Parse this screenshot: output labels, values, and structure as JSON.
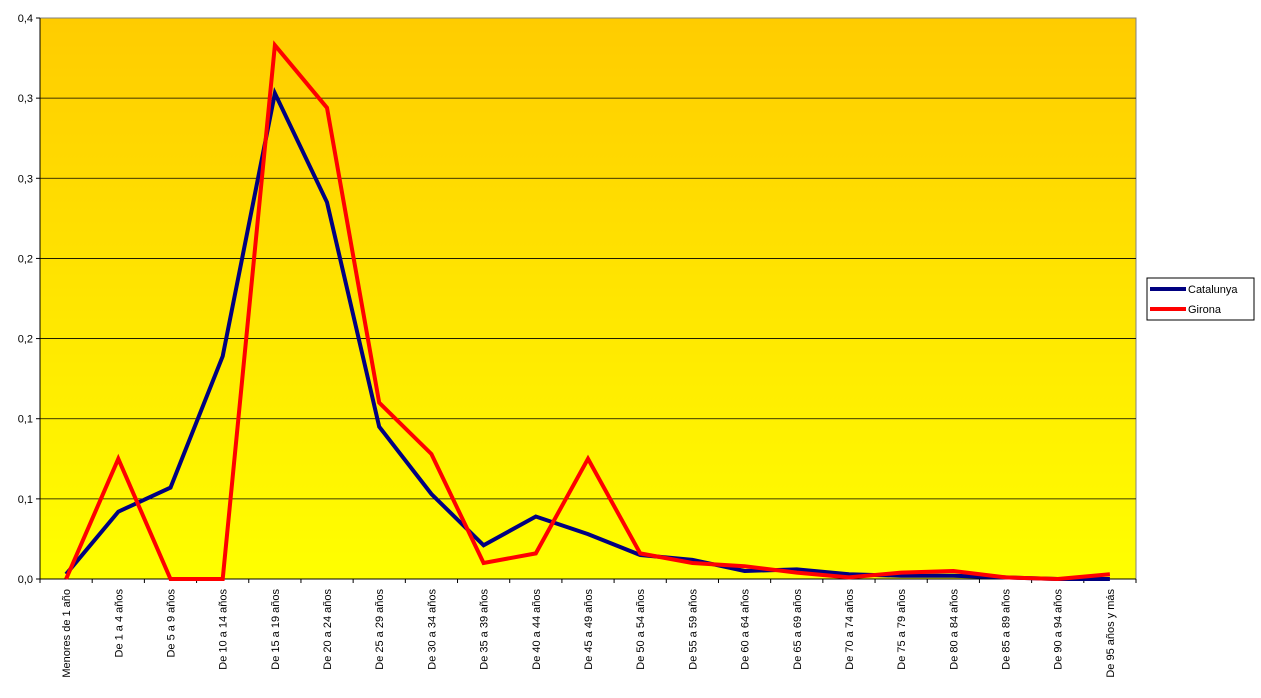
{
  "chart_data": {
    "type": "line",
    "title": "",
    "xlabel": "",
    "ylabel": "",
    "categories": [
      "Menores de 1 año",
      "De 1 a 4 años",
      "De 5 a 9 años",
      "De 10 a 14 años",
      "De 15 a 19 años",
      "De 20 a 24 años",
      "De 25 a 29 años",
      "De 30 a 34 años",
      "De 35 a 39 años",
      "De 40 a 44 años",
      "De 45 a 49 años",
      "De 50 a 54 años",
      "De 55 a 59 años",
      "De 60 a 64 años",
      "De 65 a 69 años",
      "De 70 a 74 años",
      "De 75 a 79 años",
      "De 80 a 84 años",
      "De 85 a 89 años",
      "De 90 a 94 años",
      "De 95 años y más"
    ],
    "series": [
      {
        "name": "Catalunya",
        "color": "#000080",
        "values": [
          0.003,
          0.042,
          0.057,
          0.139,
          0.303,
          0.235,
          0.095,
          0.053,
          0.021,
          0.039,
          0.028,
          0.015,
          0.012,
          0.005,
          0.006,
          0.003,
          0.002,
          0.002,
          0.001,
          0.0,
          0.0
        ]
      },
      {
        "name": "Girona",
        "color": "#ff0000",
        "values": [
          0.0,
          0.075,
          0.0,
          0.0,
          0.333,
          0.294,
          0.11,
          0.078,
          0.01,
          0.016,
          0.075,
          0.016,
          0.01,
          0.008,
          0.004,
          0.001,
          0.004,
          0.005,
          0.001,
          0.0,
          0.003
        ]
      }
    ],
    "yticks": [
      "0,0",
      "0,1",
      "0,1",
      "0,2",
      "0,2",
      "0,3",
      "0,3",
      "0,4"
    ],
    "ylim": [
      0,
      0.35
    ],
    "grid": true,
    "legend": "right",
    "background_gradient": [
      "#ffcc00",
      "#ffff00"
    ]
  }
}
